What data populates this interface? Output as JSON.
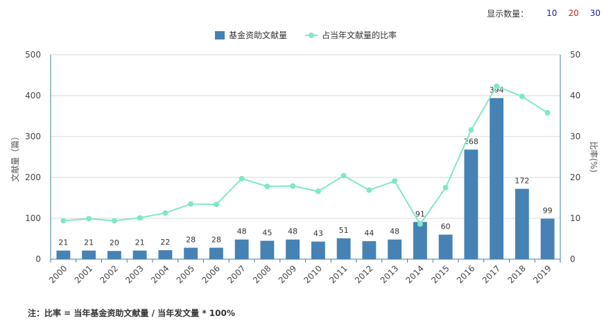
{
  "controls": {
    "display_count_label": "显示数量：",
    "options": [
      {
        "label": "10",
        "color": "#1a1aa6"
      },
      {
        "label": "20",
        "color": "#d42020"
      },
      {
        "label": "30",
        "color": "#1a1aa6"
      }
    ]
  },
  "note": "注：比率 = 当年基金资助文献量 / 当年发文量 * 100%",
  "colors": {
    "bar": "#4682b4",
    "line": "#7fe8c4",
    "axis": "#3a7ca5",
    "grid": "#d9d9d9"
  },
  "chart_data": {
    "type": "bar",
    "categories": [
      "2000",
      "2001",
      "2002",
      "2003",
      "2004",
      "2005",
      "2006",
      "2007",
      "2008",
      "2009",
      "2010",
      "2011",
      "2012",
      "2013",
      "2014",
      "2015",
      "2016",
      "2017",
      "2018",
      "2019"
    ],
    "series": [
      {
        "name": "基金资助文献量",
        "type": "bar",
        "axis": "left",
        "values": [
          21,
          21,
          20,
          21,
          22,
          28,
          28,
          48,
          45,
          48,
          43,
          51,
          44,
          48,
          91,
          60,
          268,
          394,
          172,
          99
        ]
      },
      {
        "name": "占当年文献量的比率",
        "type": "line",
        "axis": "right",
        "values": [
          9.4,
          9.9,
          9.4,
          10.1,
          11.3,
          13.5,
          13.4,
          19.7,
          17.8,
          17.9,
          16.6,
          20.4,
          16.9,
          19.1,
          8.6,
          17.5,
          31.6,
          42.3,
          39.8,
          35.8
        ]
      }
    ],
    "ylabel": "文献量（篇）",
    "y2label": "比率(%)",
    "ylim": [
      0,
      500
    ],
    "y2lim": [
      0,
      50
    ],
    "yticks": [
      "0",
      "100",
      "200",
      "300",
      "400",
      "500"
    ],
    "y2ticks": [
      "0",
      "10",
      "20",
      "30",
      "40",
      "50"
    ],
    "grid": true,
    "legend": "top-center"
  }
}
